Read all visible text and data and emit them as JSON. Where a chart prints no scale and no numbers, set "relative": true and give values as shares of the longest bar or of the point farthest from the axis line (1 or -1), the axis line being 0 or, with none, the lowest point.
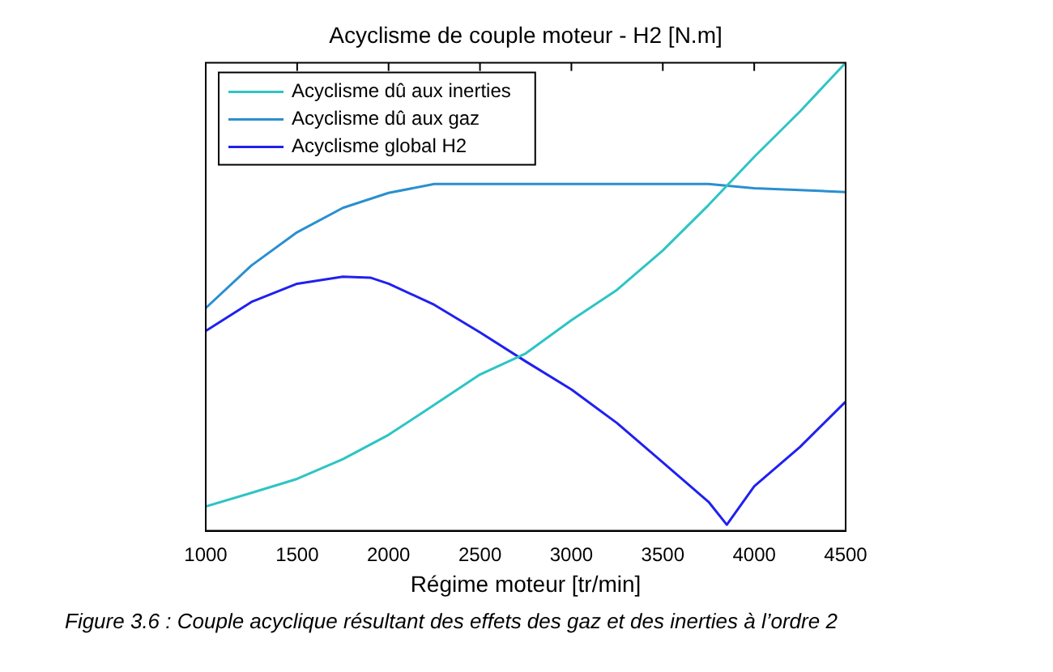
{
  "chart_data": {
    "type": "line",
    "title": "Acyclisme de couple moteur - H2 [N.m]",
    "xlabel": "Régime moteur [tr/min]",
    "relative": true,
    "xlim": [
      1000,
      4500
    ],
    "xticks": [
      1000,
      1500,
      2000,
      2500,
      3000,
      3500,
      4000,
      4500
    ],
    "legend": "top left",
    "grid": false,
    "marker": "none",
    "line_style": "solid",
    "annotations": [
      "Figure 3.6 : Couple acyclique résultant des effets des gaz et des inerties à l’ordre 2"
    ],
    "series": [
      {
        "name": "Acyclisme dû aux inerties",
        "color": "#2ec4c4",
        "x": [
          1000,
          1250,
          1500,
          1750,
          2000,
          2250,
          2500,
          2750,
          3000,
          3250,
          3500,
          3750,
          4000,
          4250,
          4500
        ],
        "values": [
          0.052,
          0.081,
          0.111,
          0.153,
          0.205,
          0.269,
          0.334,
          0.379,
          0.45,
          0.515,
          0.599,
          0.696,
          0.799,
          0.896,
          1
        ]
      },
      {
        "name": "Acyclisme dû aux gaz",
        "color": "#2a8fd0",
        "x": [
          1000,
          1250,
          1500,
          1750,
          2000,
          2250,
          2500,
          3000,
          3500,
          3750,
          4000,
          4250,
          4500
        ],
        "values": [
          0.476,
          0.567,
          0.638,
          0.69,
          0.722,
          0.741,
          0.741,
          0.741,
          0.741,
          0.741,
          0.732,
          0.728,
          0.724
        ]
      },
      {
        "name": "Acyclisme global H2",
        "color": "#2020f0",
        "x": [
          1000,
          1250,
          1500,
          1750,
          1900,
          2000,
          2250,
          2500,
          2750,
          3000,
          3250,
          3500,
          3750,
          3850,
          4000,
          4250,
          4500
        ],
        "values": [
          0.427,
          0.489,
          0.528,
          0.543,
          0.541,
          0.528,
          0.483,
          0.424,
          0.362,
          0.302,
          0.23,
          0.146,
          0.062,
          0.013,
          0.095,
          0.179,
          0.276
        ]
      }
    ]
  }
}
